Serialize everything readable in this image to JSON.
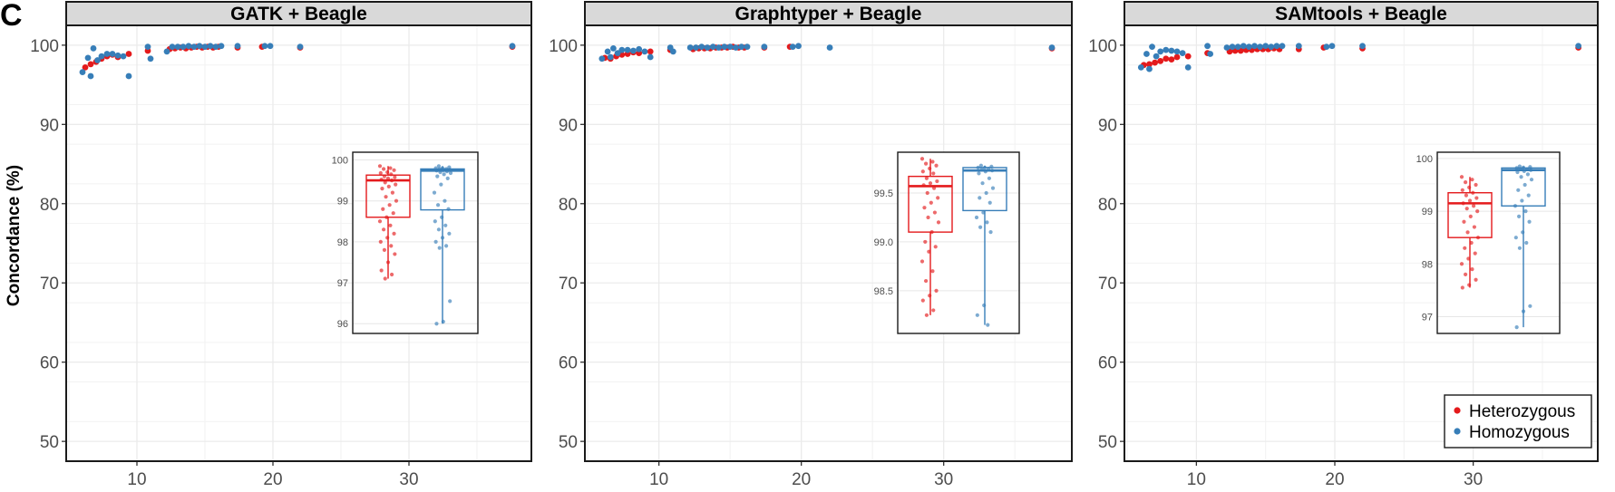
{
  "panel_label": "C",
  "colors": {
    "heterozygous": "#e41a1c",
    "homozygous": "#377eb8",
    "strip_fill": "#d9d9d9",
    "grid": "#ebebeb"
  },
  "chart_data": [
    {
      "type": "scatter",
      "title": "GATK + Beagle",
      "ylabel": "Concordance (%)",
      "xlabel": "",
      "xlim": [
        4.8,
        39.0
      ],
      "ylim": [
        47.5,
        102.5
      ],
      "x_ticks": [
        "10",
        "20",
        "30"
      ],
      "y_ticks": [
        "50",
        "60",
        "70",
        "80",
        "90",
        "100"
      ],
      "grid": true,
      "series": [
        {
          "name": "Heterozygous",
          "points": [
            [
              6.2,
              97.2
            ],
            [
              6.6,
              97.6
            ],
            [
              7.0,
              97.9
            ],
            [
              7.4,
              98.3
            ],
            [
              7.8,
              98.6
            ],
            [
              8.2,
              98.8
            ],
            [
              8.6,
              98.5
            ],
            [
              9.4,
              98.9
            ],
            [
              10.8,
              99.3
            ],
            [
              12.4,
              99.5
            ],
            [
              12.8,
              99.6
            ],
            [
              13.2,
              99.7
            ],
            [
              13.6,
              99.6
            ],
            [
              14.0,
              99.7
            ],
            [
              14.4,
              99.8
            ],
            [
              14.8,
              99.7
            ],
            [
              15.2,
              99.8
            ],
            [
              15.6,
              99.7
            ],
            [
              16.0,
              99.8
            ],
            [
              17.4,
              99.7
            ],
            [
              19.2,
              99.8
            ],
            [
              22.0,
              99.7
            ],
            [
              37.6,
              99.8
            ]
          ]
        },
        {
          "name": "Homozygous",
          "points": [
            [
              6.0,
              96.6
            ],
            [
              6.4,
              98.4
            ],
            [
              6.6,
              96.1
            ],
            [
              6.8,
              99.6
            ],
            [
              7.1,
              98.1
            ],
            [
              7.4,
              98.6
            ],
            [
              7.8,
              98.9
            ],
            [
              8.2,
              98.9
            ],
            [
              8.6,
              98.7
            ],
            [
              9.0,
              98.6
            ],
            [
              9.4,
              96.1
            ],
            [
              10.8,
              99.8
            ],
            [
              11.0,
              98.3
            ],
            [
              12.2,
              99.2
            ],
            [
              12.6,
              99.8
            ],
            [
              13.0,
              99.8
            ],
            [
              13.4,
              99.8
            ],
            [
              13.8,
              99.9
            ],
            [
              14.2,
              99.8
            ],
            [
              14.6,
              99.9
            ],
            [
              15.0,
              99.8
            ],
            [
              15.4,
              99.9
            ],
            [
              15.8,
              99.8
            ],
            [
              16.2,
              99.9
            ],
            [
              17.4,
              99.9
            ],
            [
              19.4,
              99.9
            ],
            [
              19.8,
              99.9
            ],
            [
              22.0,
              99.8
            ],
            [
              37.6,
              99.9
            ]
          ]
        }
      ],
      "inset": {
        "type": "box",
        "ylim": [
          95.85,
          100.1
        ],
        "y_ticks": [
          "96",
          "97",
          "98",
          "99",
          "100"
        ],
        "boxes": [
          {
            "name": "Heterozygous",
            "min": 97.1,
            "q1": 98.6,
            "median": 99.5,
            "q3": 99.63,
            "max": 99.85,
            "points": [
              99.85,
              99.8,
              99.78,
              99.75,
              99.7,
              99.68,
              99.65,
              99.6,
              99.58,
              99.55,
              99.52,
              99.5,
              99.45,
              99.4,
              99.35,
              99.3,
              99.2,
              99.1,
              99.0,
              98.9,
              98.8,
              98.7,
              98.6,
              98.5,
              98.4,
              98.3,
              98.2,
              98.1,
              98.0,
              97.9,
              97.8,
              97.7,
              97.5,
              97.3,
              97.2,
              97.1
            ]
          },
          {
            "name": "Homozygous",
            "min": 96.0,
            "q1": 98.78,
            "median": 99.74,
            "q3": 99.78,
            "max": 99.85,
            "points": [
              99.85,
              99.82,
              99.8,
              99.8,
              99.78,
              99.78,
              99.76,
              99.75,
              99.74,
              99.72,
              99.7,
              99.68,
              99.65,
              99.6,
              99.55,
              99.4,
              99.2,
              99.0,
              98.9,
              98.8,
              98.6,
              98.5,
              98.4,
              98.3,
              98.2,
              98.1,
              98.0,
              97.9,
              97.85,
              96.55,
              96.05,
              96.0
            ]
          }
        ]
      }
    },
    {
      "type": "scatter",
      "title": "Graphtyper + Beagle",
      "xlabel": "",
      "xlim": [
        4.8,
        39.0
      ],
      "ylim": [
        47.5,
        102.5
      ],
      "x_ticks": [
        "10",
        "20",
        "30"
      ],
      "y_ticks": [
        "50",
        "60",
        "70",
        "80",
        "90",
        "100"
      ],
      "grid": true,
      "series": [
        {
          "name": "Heterozygous",
          "points": [
            [
              6.2,
              98.4
            ],
            [
              6.6,
              98.3
            ],
            [
              7.0,
              98.6
            ],
            [
              7.4,
              98.8
            ],
            [
              7.8,
              98.9
            ],
            [
              8.2,
              99.1
            ],
            [
              8.6,
              99.0
            ],
            [
              9.4,
              99.2
            ],
            [
              10.8,
              99.4
            ],
            [
              12.4,
              99.5
            ],
            [
              12.8,
              99.6
            ],
            [
              13.2,
              99.6
            ],
            [
              13.6,
              99.6
            ],
            [
              14.0,
              99.7
            ],
            [
              14.4,
              99.7
            ],
            [
              14.8,
              99.7
            ],
            [
              15.2,
              99.8
            ],
            [
              15.6,
              99.7
            ],
            [
              16.0,
              99.7
            ],
            [
              17.4,
              99.7
            ],
            [
              19.2,
              99.8
            ],
            [
              37.6,
              99.6
            ]
          ]
        },
        {
          "name": "Homozygous",
          "points": [
            [
              6.0,
              98.3
            ],
            [
              6.4,
              99.2
            ],
            [
              6.6,
              98.5
            ],
            [
              6.8,
              99.6
            ],
            [
              7.1,
              99.0
            ],
            [
              7.4,
              99.4
            ],
            [
              7.8,
              99.4
            ],
            [
              8.2,
              99.3
            ],
            [
              8.6,
              99.5
            ],
            [
              9.0,
              99.2
            ],
            [
              9.4,
              98.5
            ],
            [
              10.8,
              99.7
            ],
            [
              11.0,
              99.2
            ],
            [
              12.2,
              99.7
            ],
            [
              12.6,
              99.7
            ],
            [
              13.0,
              99.8
            ],
            [
              13.4,
              99.7
            ],
            [
              13.8,
              99.8
            ],
            [
              14.2,
              99.7
            ],
            [
              14.6,
              99.8
            ],
            [
              15.0,
              99.8
            ],
            [
              15.4,
              99.7
            ],
            [
              15.8,
              99.8
            ],
            [
              16.2,
              99.8
            ],
            [
              17.4,
              99.8
            ],
            [
              19.4,
              99.8
            ],
            [
              19.8,
              99.9
            ],
            [
              22.0,
              99.7
            ],
            [
              37.6,
              99.7
            ]
          ]
        }
      ],
      "inset": {
        "type": "box",
        "ylim": [
          98.1,
          99.88
        ],
        "y_ticks": [
          "98.5",
          "99.0",
          "99.5"
        ],
        "boxes": [
          {
            "name": "Heterozygous",
            "min": 98.25,
            "q1": 99.1,
            "median": 99.57,
            "q3": 99.67,
            "max": 99.85,
            "points": [
              99.85,
              99.82,
              99.8,
              99.78,
              99.75,
              99.72,
              99.7,
              99.65,
              99.62,
              99.6,
              99.58,
              99.55,
              99.5,
              99.45,
              99.4,
              99.35,
              99.3,
              99.25,
              99.2,
              99.1,
              99.0,
              98.95,
              98.9,
              98.8,
              98.7,
              98.6,
              98.5,
              98.45,
              98.4,
              98.3,
              98.25
            ]
          },
          {
            "name": "Homozygous",
            "min": 98.15,
            "q1": 99.32,
            "median": 99.73,
            "q3": 99.76,
            "max": 99.78,
            "points": [
              99.78,
              99.77,
              99.76,
              99.76,
              99.75,
              99.74,
              99.73,
              99.72,
              99.7,
              99.65,
              99.6,
              99.55,
              99.5,
              99.45,
              99.4,
              99.3,
              99.25,
              99.2,
              99.15,
              99.1,
              98.35,
              98.25,
              98.15
            ]
          }
        ]
      }
    },
    {
      "type": "scatter",
      "title": "SAMtools + Beagle",
      "xlabel": "",
      "xlim": [
        4.8,
        39.0
      ],
      "ylim": [
        47.5,
        102.5
      ],
      "x_ticks": [
        "10",
        "20",
        "30"
      ],
      "y_ticks": [
        "50",
        "60",
        "70",
        "80",
        "90",
        "100"
      ],
      "grid": true,
      "series": [
        {
          "name": "Heterozygous",
          "points": [
            [
              6.2,
              97.5
            ],
            [
              6.6,
              97.6
            ],
            [
              7.0,
              97.8
            ],
            [
              7.4,
              98.0
            ],
            [
              7.8,
              98.3
            ],
            [
              8.2,
              98.2
            ],
            [
              8.6,
              98.5
            ],
            [
              9.4,
              98.6
            ],
            [
              10.8,
              99.0
            ],
            [
              12.4,
              99.2
            ],
            [
              12.8,
              99.3
            ],
            [
              13.2,
              99.3
            ],
            [
              13.6,
              99.4
            ],
            [
              14.0,
              99.4
            ],
            [
              14.4,
              99.5
            ],
            [
              14.8,
              99.5
            ],
            [
              15.2,
              99.5
            ],
            [
              15.6,
              99.6
            ],
            [
              16.0,
              99.5
            ],
            [
              17.4,
              99.5
            ],
            [
              19.2,
              99.7
            ],
            [
              22.0,
              99.6
            ],
            [
              37.6,
              99.7
            ]
          ]
        },
        {
          "name": "Homozygous",
          "points": [
            [
              6.0,
              97.2
            ],
            [
              6.4,
              98.9
            ],
            [
              6.6,
              97.0
            ],
            [
              6.8,
              99.8
            ],
            [
              7.1,
              98.6
            ],
            [
              7.4,
              99.2
            ],
            [
              7.8,
              99.4
            ],
            [
              8.2,
              99.3
            ],
            [
              8.6,
              99.2
            ],
            [
              9.0,
              99.0
            ],
            [
              9.4,
              97.2
            ],
            [
              10.8,
              99.9
            ],
            [
              11.0,
              98.9
            ],
            [
              12.2,
              99.7
            ],
            [
              12.6,
              99.8
            ],
            [
              13.0,
              99.8
            ],
            [
              13.4,
              99.9
            ],
            [
              13.8,
              99.8
            ],
            [
              14.2,
              99.9
            ],
            [
              14.6,
              99.8
            ],
            [
              15.0,
              99.9
            ],
            [
              15.4,
              99.8
            ],
            [
              15.8,
              99.9
            ],
            [
              16.2,
              99.9
            ],
            [
              17.4,
              99.9
            ],
            [
              19.4,
              99.8
            ],
            [
              19.8,
              99.9
            ],
            [
              22.0,
              99.9
            ],
            [
              37.6,
              99.9
            ]
          ]
        }
      ],
      "inset": {
        "type": "box",
        "ylim": [
          96.75,
          100.05
        ],
        "y_ticks": [
          "97",
          "98",
          "99",
          "100"
        ],
        "boxes": [
          {
            "name": "Heterozygous",
            "min": 97.55,
            "q1": 98.5,
            "median": 99.15,
            "q3": 99.35,
            "max": 99.65,
            "points": [
              99.65,
              99.6,
              99.55,
              99.5,
              99.45,
              99.4,
              99.35,
              99.3,
              99.25,
              99.2,
              99.15,
              99.1,
              99.05,
              99.0,
              98.9,
              98.8,
              98.7,
              98.6,
              98.5,
              98.4,
              98.3,
              98.2,
              98.1,
              98.0,
              97.9,
              97.8,
              97.7,
              97.6,
              97.55
            ]
          },
          {
            "name": "Homozygous",
            "min": 96.8,
            "q1": 99.1,
            "median": 99.78,
            "q3": 99.82,
            "max": 99.85,
            "points": [
              99.85,
              99.84,
              99.83,
              99.82,
              99.8,
              99.8,
              99.78,
              99.76,
              99.74,
              99.7,
              99.65,
              99.6,
              99.5,
              99.4,
              99.3,
              99.2,
              99.1,
              99.0,
              98.9,
              98.8,
              98.6,
              98.5,
              98.4,
              98.3,
              97.2,
              97.1,
              96.8
            ]
          }
        ]
      },
      "legend": {
        "position": "bottom-right",
        "entries": [
          "Heterozygous",
          "Homozygous"
        ]
      }
    }
  ]
}
